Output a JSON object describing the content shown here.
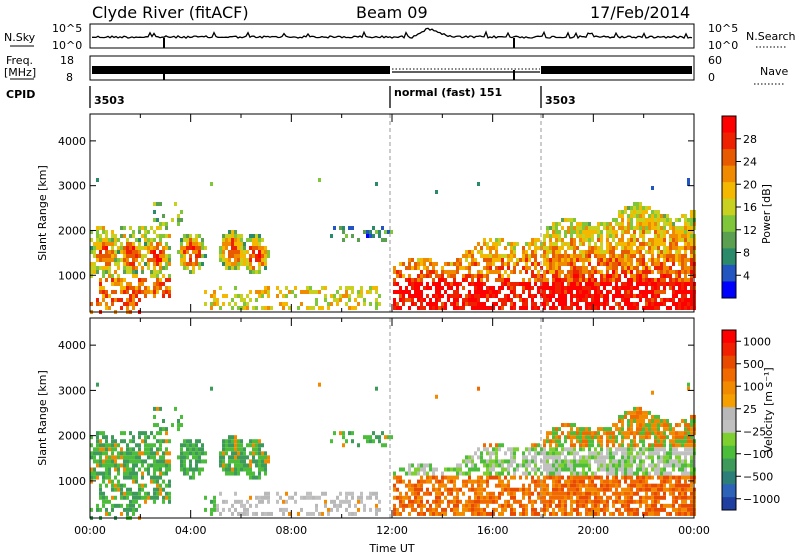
{
  "header": {
    "station": "Clyde River (fitACF)",
    "beam": "Beam 09",
    "date": "17/Feb/2014"
  },
  "strips": {
    "nsky_label": "N.Sky",
    "nsky_ticks": [
      "10^5",
      "10^0"
    ],
    "nsearch_label": "N.Search",
    "nsearch_ticks": [
      "10^5",
      "10^0"
    ],
    "freq_label_1": "Freq.",
    "freq_label_2": "[MHz]",
    "freq_ticks": [
      "18",
      "8"
    ],
    "nave_label": "Nave",
    "nave_ticks": [
      "60",
      "0"
    ],
    "cpid_label": "CPID",
    "cpid_segments": [
      {
        "label": "3503",
        "start_hour": 0
      },
      {
        "label": "normal (fast) 151",
        "start_hour": 12
      },
      {
        "label": "3503",
        "start_hour": 18
      }
    ]
  },
  "chart_data": [
    {
      "type": "heatmap",
      "name": "power",
      "ylabel": "Slant Range [km]",
      "ylim": [
        180,
        4600
      ],
      "yticks": [
        1000,
        2000,
        3000,
        4000
      ],
      "xlim": [
        0,
        24
      ],
      "colorbar": {
        "label": "Power [dB]",
        "ticks": [
          4,
          8,
          12,
          16,
          20,
          24,
          28
        ],
        "colors": [
          "#0000ff",
          "#2255c0",
          "#2a8a6a",
          "#5aa050",
          "#7fc63a",
          "#c8d020",
          "#f5b800",
          "#f08a00",
          "#e85a00",
          "#ee2200",
          "#ff0000"
        ]
      }
    },
    {
      "type": "heatmap",
      "name": "velocity",
      "ylabel": "Slant Range [km]",
      "ylim": [
        180,
        4600
      ],
      "yticks": [
        1000,
        2000,
        3000,
        4000
      ],
      "xlim": [
        0,
        24
      ],
      "xlabel": "Time UT",
      "xticks": [
        "00:00",
        "04:00",
        "08:00",
        "12:00",
        "16:00",
        "20:00",
        "00:00"
      ],
      "colorbar": {
        "label": "Velocity [m s⁻¹]",
        "ticks": [
          "1000",
          "500",
          "100",
          "25",
          "−25",
          "−100",
          "−500",
          "−1000"
        ],
        "colors": [
          "#1e3fa0",
          "#2c62b8",
          "#2c7f78",
          "#3d9a5a",
          "#4bbd3a",
          "#7ed030",
          "#c0c0c0",
          "#b8b8b8",
          "#f5a000",
          "#f28a00",
          "#f06a00",
          "#e84a00",
          "#f02000",
          "#ff0000"
        ]
      }
    }
  ]
}
